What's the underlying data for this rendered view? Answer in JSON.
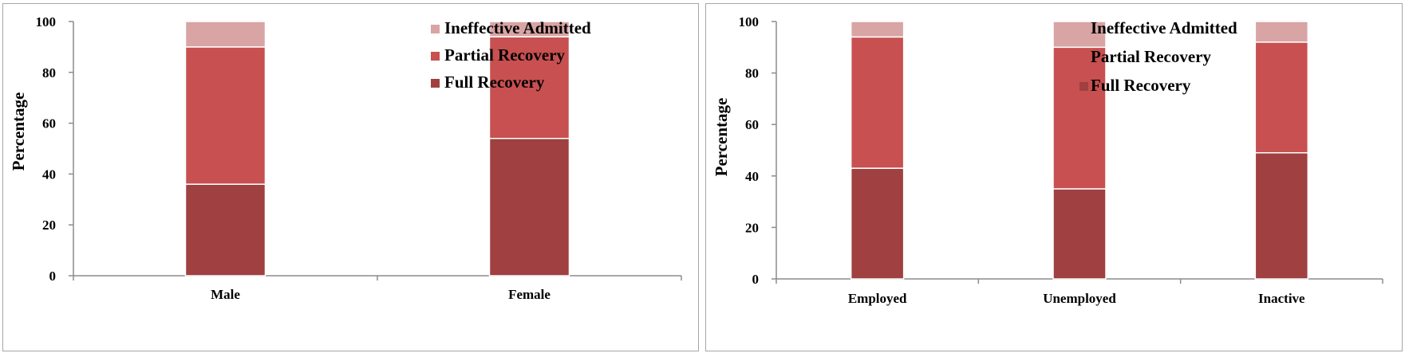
{
  "chart_data": [
    {
      "type": "bar",
      "stacked": true,
      "categories": [
        "Male",
        "Female"
      ],
      "series": [
        {
          "name": "Full Recovery",
          "values": [
            36,
            54
          ],
          "color": "#a04040"
        },
        {
          "name": "Partial Recovery",
          "values": [
            54,
            40
          ],
          "color": "#c85050"
        },
        {
          "name": "Ineffective Admitted",
          "values": [
            10,
            6
          ],
          "color": "#d9a4a4"
        }
      ],
      "legend_order": [
        "Ineffective Admitted",
        "Partial Recovery",
        "Full Recovery"
      ],
      "ylabel": "Percentage",
      "ylim": [
        0,
        100
      ],
      "yticks": [
        0,
        20,
        40,
        60,
        80,
        100
      ],
      "grid": false,
      "legend": "top-right"
    },
    {
      "type": "bar",
      "stacked": true,
      "categories": [
        "Employed",
        "Unemployed",
        "Inactive"
      ],
      "series": [
        {
          "name": "Full Recovery",
          "values": [
            43,
            35,
            49
          ],
          "color": "#a04040"
        },
        {
          "name": "Partial Recovery",
          "values": [
            51,
            55,
            43
          ],
          "color": "#c85050"
        },
        {
          "name": "Ineffective Admitted",
          "values": [
            6,
            10,
            8
          ],
          "color": "#d9a4a4"
        }
      ],
      "legend_order": [
        "Ineffective Admitted",
        "Partial Recovery",
        "Full Recovery"
      ],
      "ylabel": "Percentage",
      "ylim": [
        0,
        100
      ],
      "yticks": [
        0,
        20,
        40,
        60,
        80,
        100
      ],
      "grid": false,
      "legend": "top-right"
    }
  ]
}
